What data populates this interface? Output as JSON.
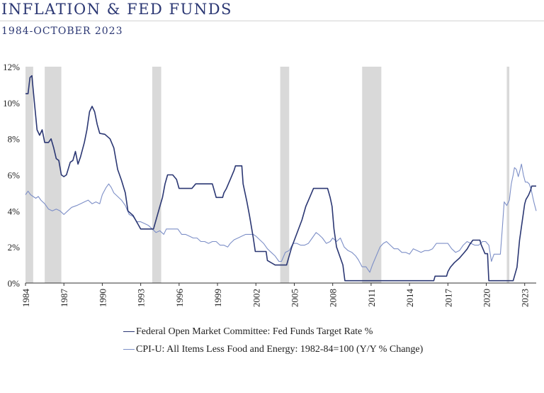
{
  "title": "INFLATION & FED FUNDS",
  "subtitle": "1984-OCTOBER 2023",
  "chart_data": {
    "type": "line",
    "title": "INFLATION & FED FUNDS",
    "subtitle": "1984-OCTOBER 2023",
    "x_range": [
      1984,
      2023.9
    ],
    "ylim": [
      0,
      12
    ],
    "y_ticks": [
      "0%",
      "2%",
      "4%",
      "6%",
      "8%",
      "10%",
      "12%"
    ],
    "x_ticks": [
      "1984",
      "1987",
      "1990",
      "1993",
      "1996",
      "1999",
      "2002",
      "2005",
      "2008",
      "2011",
      "2014",
      "2017",
      "2020",
      "2023"
    ],
    "grid": false,
    "legend_position": "bottom",
    "recession_bands": [
      [
        1984.0,
        1984.6
      ],
      [
        1985.5,
        1986.8
      ],
      [
        1993.9,
        1994.6
      ],
      [
        2003.9,
        2004.6
      ],
      [
        2010.3,
        2011.8
      ],
      [
        2021.6,
        2021.8
      ]
    ],
    "series": [
      {
        "name": "Federal Open Market Committee: Fed Funds Target Rate %",
        "color": "#2b3773",
        "points": [
          [
            1984.0,
            10.5
          ],
          [
            1984.2,
            10.5
          ],
          [
            1984.35,
            11.4
          ],
          [
            1984.5,
            11.5
          ],
          [
            1984.7,
            10.0
          ],
          [
            1984.9,
            8.5
          ],
          [
            1985.1,
            8.2
          ],
          [
            1985.3,
            8.5
          ],
          [
            1985.5,
            7.8
          ],
          [
            1985.8,
            7.8
          ],
          [
            1986.0,
            8.0
          ],
          [
            1986.2,
            7.5
          ],
          [
            1986.4,
            6.9
          ],
          [
            1986.6,
            6.8
          ],
          [
            1986.8,
            6.0
          ],
          [
            1987.0,
            5.9
          ],
          [
            1987.2,
            6.0
          ],
          [
            1987.5,
            6.7
          ],
          [
            1987.7,
            6.8
          ],
          [
            1987.9,
            7.3
          ],
          [
            1988.1,
            6.6
          ],
          [
            1988.3,
            7.0
          ],
          [
            1988.6,
            7.8
          ],
          [
            1988.8,
            8.5
          ],
          [
            1989.0,
            9.5
          ],
          [
            1989.2,
            9.8
          ],
          [
            1989.4,
            9.5
          ],
          [
            1989.6,
            8.8
          ],
          [
            1989.8,
            8.3
          ],
          [
            1990.2,
            8.25
          ],
          [
            1990.6,
            8.0
          ],
          [
            1990.9,
            7.5
          ],
          [
            1991.2,
            6.3
          ],
          [
            1991.5,
            5.7
          ],
          [
            1991.8,
            5.0
          ],
          [
            1992.0,
            4.0
          ],
          [
            1992.4,
            3.75
          ],
          [
            1992.8,
            3.25
          ],
          [
            1993.0,
            3.0
          ],
          [
            1993.5,
            3.0
          ],
          [
            1994.0,
            3.0
          ],
          [
            1994.1,
            3.25
          ],
          [
            1994.3,
            3.75
          ],
          [
            1994.5,
            4.25
          ],
          [
            1994.7,
            4.75
          ],
          [
            1994.9,
            5.5
          ],
          [
            1995.1,
            6.0
          ],
          [
            1995.5,
            6.0
          ],
          [
            1995.8,
            5.75
          ],
          [
            1996.0,
            5.25
          ],
          [
            1997.0,
            5.25
          ],
          [
            1997.3,
            5.5
          ],
          [
            1998.6,
            5.5
          ],
          [
            1998.8,
            5.0
          ],
          [
            1998.9,
            4.75
          ],
          [
            1999.4,
            4.75
          ],
          [
            1999.5,
            5.0
          ],
          [
            1999.7,
            5.25
          ],
          [
            2000.0,
            5.75
          ],
          [
            2000.3,
            6.25
          ],
          [
            2000.4,
            6.5
          ],
          [
            2000.9,
            6.5
          ],
          [
            2001.0,
            5.5
          ],
          [
            2001.3,
            4.5
          ],
          [
            2001.5,
            3.75
          ],
          [
            2001.8,
            2.5
          ],
          [
            2001.95,
            1.75
          ],
          [
            2002.8,
            1.75
          ],
          [
            2002.9,
            1.25
          ],
          [
            2003.5,
            1.0
          ],
          [
            2004.4,
            1.0
          ],
          [
            2004.5,
            1.25
          ],
          [
            2004.8,
            2.0
          ],
          [
            2005.2,
            2.75
          ],
          [
            2005.6,
            3.5
          ],
          [
            2005.9,
            4.25
          ],
          [
            2006.2,
            4.75
          ],
          [
            2006.5,
            5.25
          ],
          [
            2007.6,
            5.25
          ],
          [
            2007.8,
            4.75
          ],
          [
            2007.95,
            4.25
          ],
          [
            2008.1,
            3.0
          ],
          [
            2008.3,
            2.0
          ],
          [
            2008.8,
            1.0
          ],
          [
            2008.95,
            0.13
          ],
          [
            2015.9,
            0.13
          ],
          [
            2016.0,
            0.38
          ],
          [
            2016.9,
            0.38
          ],
          [
            2017.0,
            0.63
          ],
          [
            2017.2,
            0.88
          ],
          [
            2017.5,
            1.13
          ],
          [
            2017.9,
            1.38
          ],
          [
            2018.2,
            1.63
          ],
          [
            2018.5,
            1.88
          ],
          [
            2018.7,
            2.13
          ],
          [
            2018.95,
            2.38
          ],
          [
            2019.5,
            2.38
          ],
          [
            2019.6,
            2.13
          ],
          [
            2019.75,
            1.88
          ],
          [
            2019.9,
            1.63
          ],
          [
            2020.1,
            1.63
          ],
          [
            2020.2,
            0.13
          ],
          [
            2022.1,
            0.13
          ],
          [
            2022.2,
            0.38
          ],
          [
            2022.4,
            0.88
          ],
          [
            2022.5,
            1.63
          ],
          [
            2022.6,
            2.38
          ],
          [
            2022.75,
            3.13
          ],
          [
            2022.9,
            3.88
          ],
          [
            2023.0,
            4.38
          ],
          [
            2023.1,
            4.63
          ],
          [
            2023.3,
            4.88
          ],
          [
            2023.45,
            5.13
          ],
          [
            2023.55,
            5.38
          ],
          [
            2023.9,
            5.38
          ]
        ]
      },
      {
        "name": "CPI-U: All Items Less Food and Energy: 1982-84=100 (Y/Y % Change)",
        "color": "#7d8fc7",
        "points": [
          [
            1984.0,
            4.9
          ],
          [
            1984.2,
            5.1
          ],
          [
            1984.4,
            4.9
          ],
          [
            1984.6,
            4.8
          ],
          [
            1984.8,
            4.7
          ],
          [
            1985.0,
            4.8
          ],
          [
            1985.2,
            4.6
          ],
          [
            1985.5,
            4.4
          ],
          [
            1985.8,
            4.1
          ],
          [
            1986.1,
            4.0
          ],
          [
            1986.4,
            4.1
          ],
          [
            1986.7,
            4.0
          ],
          [
            1987.0,
            3.8
          ],
          [
            1987.3,
            4.0
          ],
          [
            1987.6,
            4.2
          ],
          [
            1988.0,
            4.3
          ],
          [
            1988.3,
            4.4
          ],
          [
            1988.6,
            4.5
          ],
          [
            1988.9,
            4.6
          ],
          [
            1989.2,
            4.4
          ],
          [
            1989.5,
            4.5
          ],
          [
            1989.8,
            4.4
          ],
          [
            1990.0,
            4.9
          ],
          [
            1990.3,
            5.3
          ],
          [
            1990.5,
            5.5
          ],
          [
            1990.7,
            5.3
          ],
          [
            1990.9,
            5.0
          ],
          [
            1991.2,
            4.8
          ],
          [
            1991.5,
            4.6
          ],
          [
            1991.8,
            4.3
          ],
          [
            1992.1,
            3.8
          ],
          [
            1992.4,
            3.7
          ],
          [
            1992.7,
            3.4
          ],
          [
            1993.0,
            3.4
          ],
          [
            1993.3,
            3.3
          ],
          [
            1993.6,
            3.2
          ],
          [
            1993.9,
            3.0
          ],
          [
            1994.2,
            2.8
          ],
          [
            1994.5,
            2.9
          ],
          [
            1994.8,
            2.7
          ],
          [
            1995.0,
            3.0
          ],
          [
            1995.3,
            3.0
          ],
          [
            1995.6,
            3.0
          ],
          [
            1995.9,
            3.0
          ],
          [
            1996.2,
            2.7
          ],
          [
            1996.5,
            2.7
          ],
          [
            1996.8,
            2.6
          ],
          [
            1997.1,
            2.5
          ],
          [
            1997.4,
            2.5
          ],
          [
            1997.7,
            2.3
          ],
          [
            1998.0,
            2.3
          ],
          [
            1998.3,
            2.2
          ],
          [
            1998.6,
            2.3
          ],
          [
            1998.9,
            2.3
          ],
          [
            1999.2,
            2.1
          ],
          [
            1999.5,
            2.1
          ],
          [
            1999.8,
            2.0
          ],
          [
            2000.0,
            2.2
          ],
          [
            2000.3,
            2.4
          ],
          [
            2000.6,
            2.5
          ],
          [
            2000.9,
            2.6
          ],
          [
            2001.2,
            2.7
          ],
          [
            2001.5,
            2.7
          ],
          [
            2001.8,
            2.7
          ],
          [
            2002.0,
            2.6
          ],
          [
            2002.3,
            2.4
          ],
          [
            2002.6,
            2.2
          ],
          [
            2002.9,
            1.9
          ],
          [
            2003.2,
            1.7
          ],
          [
            2003.5,
            1.5
          ],
          [
            2003.8,
            1.2
          ],
          [
            2004.0,
            1.2
          ],
          [
            2004.3,
            1.7
          ],
          [
            2004.6,
            1.8
          ],
          [
            2004.9,
            2.2
          ],
          [
            2005.2,
            2.2
          ],
          [
            2005.5,
            2.1
          ],
          [
            2005.8,
            2.1
          ],
          [
            2006.1,
            2.2
          ],
          [
            2006.4,
            2.5
          ],
          [
            2006.7,
            2.8
          ],
          [
            2006.9,
            2.7
          ],
          [
            2007.2,
            2.5
          ],
          [
            2007.5,
            2.2
          ],
          [
            2007.8,
            2.3
          ],
          [
            2008.0,
            2.5
          ],
          [
            2008.3,
            2.3
          ],
          [
            2008.6,
            2.5
          ],
          [
            2008.9,
            2.0
          ],
          [
            2009.2,
            1.8
          ],
          [
            2009.5,
            1.7
          ],
          [
            2009.8,
            1.5
          ],
          [
            2010.0,
            1.3
          ],
          [
            2010.3,
            0.9
          ],
          [
            2010.6,
            0.9
          ],
          [
            2010.9,
            0.6
          ],
          [
            2011.1,
            1.0
          ],
          [
            2011.4,
            1.5
          ],
          [
            2011.7,
            2.0
          ],
          [
            2011.95,
            2.2
          ],
          [
            2012.2,
            2.3
          ],
          [
            2012.5,
            2.1
          ],
          [
            2012.8,
            1.9
          ],
          [
            2013.1,
            1.9
          ],
          [
            2013.4,
            1.7
          ],
          [
            2013.7,
            1.7
          ],
          [
            2014.0,
            1.6
          ],
          [
            2014.3,
            1.9
          ],
          [
            2014.6,
            1.8
          ],
          [
            2014.9,
            1.7
          ],
          [
            2015.2,
            1.8
          ],
          [
            2015.5,
            1.8
          ],
          [
            2015.8,
            1.9
          ],
          [
            2016.1,
            2.2
          ],
          [
            2016.4,
            2.2
          ],
          [
            2016.7,
            2.2
          ],
          [
            2017.0,
            2.2
          ],
          [
            2017.3,
            1.9
          ],
          [
            2017.6,
            1.7
          ],
          [
            2017.9,
            1.8
          ],
          [
            2018.2,
            2.1
          ],
          [
            2018.5,
            2.3
          ],
          [
            2018.8,
            2.2
          ],
          [
            2019.1,
            2.1
          ],
          [
            2019.4,
            2.1
          ],
          [
            2019.7,
            2.3
          ],
          [
            2019.95,
            2.3
          ],
          [
            2020.2,
            2.1
          ],
          [
            2020.4,
            1.2
          ],
          [
            2020.6,
            1.6
          ],
          [
            2020.9,
            1.6
          ],
          [
            2021.1,
            1.6
          ],
          [
            2021.25,
            3.0
          ],
          [
            2021.4,
            4.5
          ],
          [
            2021.6,
            4.3
          ],
          [
            2021.8,
            4.6
          ],
          [
            2021.95,
            5.5
          ],
          [
            2022.1,
            6.0
          ],
          [
            2022.2,
            6.4
          ],
          [
            2022.35,
            6.3
          ],
          [
            2022.5,
            5.9
          ],
          [
            2022.65,
            6.3
          ],
          [
            2022.75,
            6.6
          ],
          [
            2022.9,
            6.0
          ],
          [
            2023.05,
            5.6
          ],
          [
            2023.2,
            5.6
          ],
          [
            2023.35,
            5.5
          ],
          [
            2023.5,
            5.2
          ],
          [
            2023.65,
            4.7
          ],
          [
            2023.75,
            4.4
          ],
          [
            2023.9,
            4.0
          ]
        ]
      }
    ]
  }
}
